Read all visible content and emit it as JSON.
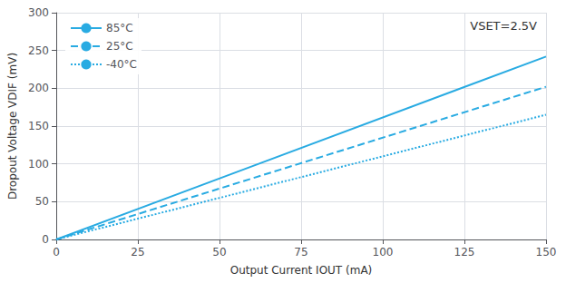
{
  "chart_data": {
    "type": "line",
    "xlabel": "Output Current IOUT (mA)",
    "ylabel": "Dropout Voltage VDIF (mV)",
    "annotations": [
      "VSET=2.5V"
    ],
    "color": "#29ABE2",
    "series": [
      {
        "name": "85°C",
        "line_style": "solid",
        "x": [
          0,
          150
        ],
        "values": [
          0,
          242
        ]
      },
      {
        "name": "25°C",
        "line_style": "dashed",
        "x": [
          0,
          150
        ],
        "values": [
          0,
          202
        ]
      },
      {
        "name": "-40°C",
        "line_style": "dotted",
        "x": [
          0,
          150
        ],
        "values": [
          0,
          165
        ]
      }
    ],
    "xlim": [
      0,
      150
    ],
    "ylim": [
      0,
      300
    ],
    "xticks": [
      0,
      25,
      50,
      75,
      100,
      125,
      150
    ],
    "yticks": [
      0,
      50,
      100,
      150,
      200,
      250,
      300
    ],
    "grid": true,
    "legend": "upper left"
  }
}
